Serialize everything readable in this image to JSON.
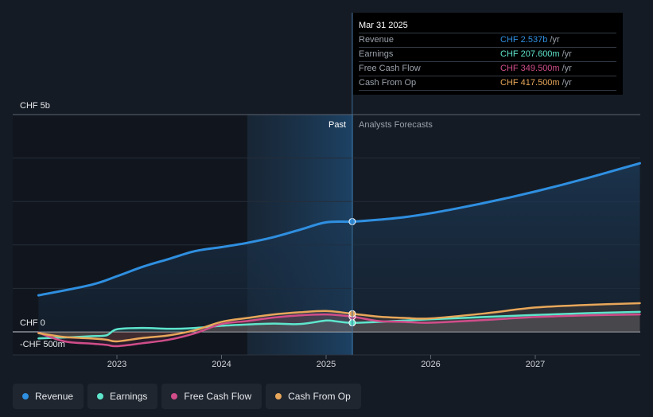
{
  "chart_data": {
    "type": "line",
    "title": "",
    "y_unit_labels": {
      "top": "CHF 5b",
      "zero": "CHF 0",
      "bottom": "-CHF 500m"
    },
    "ylim": [
      -500,
      5000
    ],
    "xlim": [
      2022.25,
      2028.0
    ],
    "x_ticks": [
      2023,
      2024,
      2025,
      2026,
      2027
    ],
    "x_tick_labels": [
      "2023",
      "2024",
      "2025",
      "2026",
      "2027"
    ],
    "past_label": "Past",
    "forecast_label": "Analysts Forecasts",
    "divider_x": 2025.25,
    "series": [
      {
        "name": "Revenue",
        "color": "#2f8fe0",
        "area": true,
        "x": [
          2022.25,
          2022.75,
          2023.0,
          2023.25,
          2023.5,
          2023.75,
          2024.0,
          2024.25,
          2024.5,
          2024.75,
          2025.0,
          2025.25,
          2025.5,
          2025.75,
          2026.0,
          2026.25,
          2026.5,
          2026.75,
          2027.0,
          2027.25,
          2027.5,
          2027.75,
          2028.0
        ],
        "y": [
          840,
          1080,
          1280,
          1500,
          1680,
          1860,
          1950,
          2050,
          2180,
          2350,
          2520,
          2537,
          2580,
          2640,
          2730,
          2840,
          2960,
          3090,
          3230,
          3380,
          3540,
          3710,
          3880
        ]
      },
      {
        "name": "Earnings",
        "color": "#5ee5cc",
        "area": false,
        "x": [
          2022.25,
          2022.5,
          2022.75,
          2022.9,
          2023.0,
          2023.25,
          2023.5,
          2023.75,
          2024.0,
          2024.25,
          2024.5,
          2024.75,
          2025.0,
          2025.1,
          2025.25,
          2025.5,
          2026.0,
          2026.5,
          2027.0,
          2027.5,
          2028.0
        ],
        "y": [
          -150,
          -130,
          -100,
          -80,
          60,
          90,
          70,
          90,
          140,
          170,
          190,
          180,
          260,
          240,
          207.6,
          230,
          290,
          340,
          390,
          430,
          460
        ]
      },
      {
        "name": "Free Cash Flow",
        "color": "#d14d8a",
        "area": false,
        "x": [
          2022.25,
          2022.5,
          2022.75,
          2022.9,
          2023.0,
          2023.25,
          2023.5,
          2023.75,
          2024.0,
          2024.25,
          2024.5,
          2024.75,
          2025.0,
          2025.25,
          2025.5,
          2025.75,
          2026.0,
          2026.5,
          2027.0,
          2027.5,
          2028.0
        ],
        "y": [
          -20,
          -220,
          -270,
          -300,
          -330,
          -260,
          -180,
          -30,
          180,
          250,
          330,
          380,
          400,
          349.5,
          250,
          230,
          210,
          270,
          340,
          380,
          400
        ]
      },
      {
        "name": "Cash From Op",
        "color": "#e8a75a",
        "area": false,
        "x": [
          2022.25,
          2022.5,
          2022.75,
          2022.9,
          2023.0,
          2023.25,
          2023.5,
          2023.75,
          2024.0,
          2024.25,
          2024.5,
          2024.75,
          2025.0,
          2025.25,
          2025.5,
          2025.75,
          2026.0,
          2026.5,
          2027.0,
          2027.5,
          2028.0
        ],
        "y": [
          -30,
          -120,
          -150,
          -180,
          -220,
          -140,
          -80,
          40,
          230,
          320,
          400,
          450,
          480,
          417.5,
          350,
          320,
          310,
          420,
          560,
          620,
          660
        ]
      }
    ]
  },
  "tooltip": {
    "date": "Mar 31 2025",
    "rows": [
      {
        "label": "Revenue",
        "value": "CHF 2.537b",
        "unit": "/yr",
        "color": "#2f8fe0"
      },
      {
        "label": "Earnings",
        "value": "CHF 207.600m",
        "unit": "/yr",
        "color": "#5ee5cc"
      },
      {
        "label": "Free Cash Flow",
        "value": "CHF 349.500m",
        "unit": "/yr",
        "color": "#d14d8a"
      },
      {
        "label": "Cash From Op",
        "value": "CHF 417.500m",
        "unit": "/yr",
        "color": "#e8a75a"
      }
    ]
  },
  "legend": [
    {
      "label": "Revenue",
      "color": "#2f8fe0"
    },
    {
      "label": "Earnings",
      "color": "#5ee5cc"
    },
    {
      "label": "Free Cash Flow",
      "color": "#d14d8a"
    },
    {
      "label": "Cash From Op",
      "color": "#e8a75a"
    }
  ]
}
